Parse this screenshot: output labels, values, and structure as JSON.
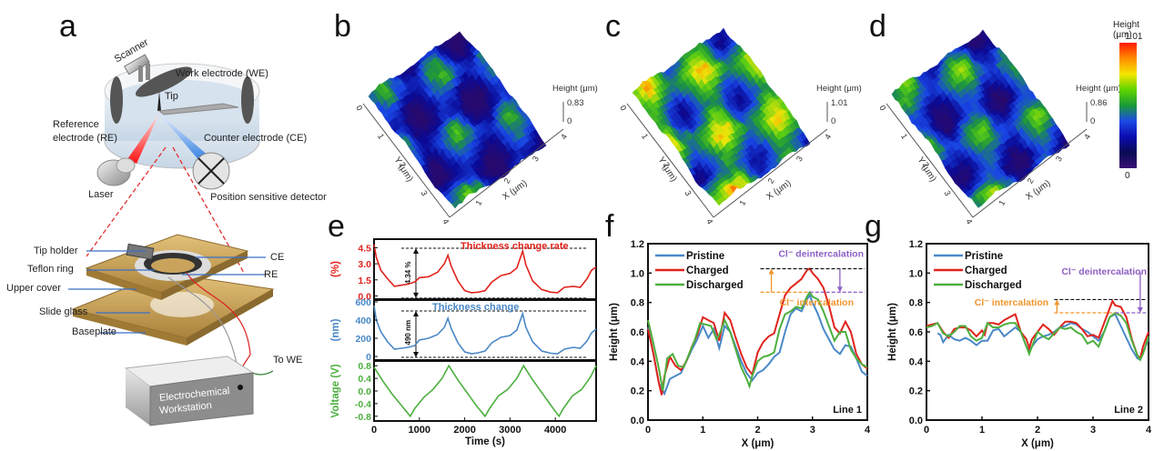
{
  "panels": {
    "a": {
      "label": "a",
      "schematic_top": {
        "scanner": "Scanner",
        "work_electrode": "Work electrode (WE)",
        "tip": "Tip",
        "reference_electrode_line1": "Reference",
        "reference_electrode_line2": "electrode (RE)",
        "counter_electrode": "Counter electrode (CE)",
        "laser": "Laser",
        "detector": "Position sensitive detector"
      },
      "schematic_bottom": {
        "tip_holder": "Tip holder",
        "teflon_ring": "Teflon ring",
        "upper_cover": "Upper cover",
        "slide_glass": "Slide glass",
        "baseplate": "Baseplate",
        "ce": "CE",
        "re": "RE",
        "to_we": "To WE",
        "workstation_line1": "Electrochemical",
        "workstation_line2": "Workstation"
      }
    },
    "b": {
      "label": "b",
      "height_label": "Height (μm)",
      "zmax": "0.83",
      "zmin": "0",
      "x_label": "X (μm)",
      "y_label": "Y (μm)",
      "ticks": [
        "0",
        "1",
        "2",
        "3",
        "4"
      ]
    },
    "c": {
      "label": "c",
      "height_label": "Height (μm)",
      "zmax": "1.01",
      "zmin": "0",
      "x_label": "X (μm)",
      "y_label": "Y (μm)",
      "ticks": [
        "0",
        "1",
        "2",
        "3",
        "4"
      ]
    },
    "d": {
      "label": "d",
      "height_label": "Height (μm)",
      "zmax": "0.86",
      "zmin": "0",
      "x_label": "X (μm)",
      "y_label": "Y (μm)",
      "ticks": [
        "0",
        "1",
        "2",
        "3",
        "4"
      ]
    },
    "colorbar": {
      "title": "Height (μm)",
      "max": "1.01",
      "min": "0",
      "colors": [
        "#ff1a00",
        "#ff8c00",
        "#f5e600",
        "#5fd400",
        "#1a9a3a",
        "#1c49e6",
        "#0b0bb0",
        "#0a0a55",
        "#3a1075"
      ]
    },
    "e": {
      "label": "e"
    },
    "f": {
      "label": "f"
    },
    "g": {
      "label": "g"
    }
  },
  "chart_data": [
    {
      "id": "e",
      "type": "line",
      "xlabel": "Time (s)",
      "xlim": [
        0,
        4900
      ],
      "xticks": [
        "0",
        "1000",
        "2000",
        "3000",
        "4000"
      ],
      "subplots": [
        {
          "name": "Thickness change rate",
          "ylabel": "(%)",
          "color": "#e0231c",
          "ylim": [
            -0.3,
            5.3
          ],
          "yticks": [
            "0.0",
            "1.5",
            "3.0",
            "4.5"
          ],
          "annotation": "4.34 %",
          "ref_lines": [
            4.45,
            -0.2
          ],
          "x": [
            0,
            50,
            150,
            300,
            450,
            600,
            750,
            900,
            1000,
            1200,
            1400,
            1550,
            1630,
            1700,
            1850,
            2000,
            2150,
            2300,
            2450,
            2600,
            2800,
            3000,
            3150,
            3280,
            3350,
            3500,
            3700,
            3900,
            4050,
            4200,
            4400,
            4550,
            4700,
            4800,
            4900
          ],
          "y": [
            4.8,
            3.6,
            2.4,
            1.6,
            0.9,
            1.0,
            1.1,
            1.3,
            1.7,
            1.8,
            2.2,
            3.0,
            3.8,
            2.8,
            1.4,
            0.5,
            0.3,
            0.35,
            0.5,
            1.3,
            1.9,
            2.1,
            2.6,
            4.2,
            2.9,
            1.4,
            0.6,
            0.35,
            0.3,
            0.8,
            0.9,
            0.8,
            1.6,
            2.4,
            2.7
          ]
        },
        {
          "name": "Thickness change",
          "ylabel": "(nm)",
          "color": "#4a88c7",
          "ylim": [
            -40,
            620
          ],
          "yticks": [
            "0",
            "200",
            "400",
            "600"
          ],
          "annotation": "490 nm",
          "ref_lines": [
            500,
            -10
          ],
          "x": [
            0,
            50,
            150,
            300,
            450,
            600,
            750,
            900,
            1000,
            1200,
            1400,
            1550,
            1630,
            1700,
            1850,
            2000,
            2150,
            2300,
            2450,
            2600,
            2800,
            3000,
            3150,
            3280,
            3350,
            3500,
            3700,
            3900,
            4050,
            4200,
            4400,
            4550,
            4700,
            4800,
            4900
          ],
          "y": [
            560,
            400,
            270,
            160,
            80,
            90,
            100,
            120,
            180,
            200,
            240,
            320,
            420,
            310,
            150,
            50,
            30,
            40,
            60,
            150,
            210,
            230,
            290,
            470,
            320,
            160,
            60,
            35,
            30,
            80,
            100,
            90,
            170,
            260,
            300
          ]
        },
        {
          "name": "Voltage",
          "ylabel": "Voltage (V)",
          "color": "#4caf3e",
          "ylim": [
            -0.95,
            0.95
          ],
          "yticks": [
            "-0.8",
            "-0.4",
            "0.0",
            "0.4",
            "0.8"
          ],
          "x": [
            0,
            200,
            400,
            600,
            800,
            900,
            1100,
            1300,
            1500,
            1650,
            1850,
            2050,
            2250,
            2450,
            2550,
            2750,
            2950,
            3150,
            3300,
            3500,
            3700,
            3900,
            4080,
            4180,
            4380,
            4580,
            4780,
            4900
          ],
          "y": [
            0.75,
            0.3,
            -0.1,
            -0.45,
            -0.8,
            -0.55,
            -0.2,
            0.05,
            0.4,
            0.8,
            0.35,
            -0.05,
            -0.45,
            -0.8,
            -0.55,
            -0.15,
            0.05,
            0.4,
            0.8,
            0.35,
            -0.05,
            -0.45,
            -0.8,
            -0.55,
            -0.15,
            0.05,
            0.45,
            0.8
          ]
        }
      ]
    },
    {
      "id": "f",
      "type": "line",
      "xlabel": "X (μm)",
      "ylabel": "Height (μm)",
      "xlim": [
        0,
        4
      ],
      "ylim": [
        0,
        1.2
      ],
      "xticks": [
        "0",
        "1",
        "2",
        "3",
        "4"
      ],
      "yticks": [
        "0.0",
        "0.2",
        "0.4",
        "0.6",
        "0.8",
        "1.0",
        "1.2"
      ],
      "line_tag": "Line 1",
      "annotations": {
        "intercalation": "Cl⁻ intercalation",
        "deintercalation": "Cl⁻ deintercalation",
        "charged_level": 1.03,
        "discharged_level": 0.87,
        "intercalation_color": "#f0962a",
        "deintercalation_color": "#8e5fc4"
      },
      "series": [
        {
          "name": "Pristine",
          "color": "#4a88c7",
          "x": [
            0,
            0.1,
            0.2,
            0.3,
            0.4,
            0.5,
            0.6,
            0.7,
            0.8,
            0.9,
            1.0,
            1.1,
            1.2,
            1.3,
            1.4,
            1.5,
            1.6,
            1.7,
            1.8,
            1.9,
            2.0,
            2.1,
            2.2,
            2.3,
            2.4,
            2.5,
            2.6,
            2.7,
            2.8,
            2.9,
            2.95,
            3.0,
            3.1,
            3.2,
            3.3,
            3.4,
            3.5,
            3.6,
            3.7,
            3.8,
            3.9,
            4.0
          ],
          "y": [
            0.63,
            0.45,
            0.25,
            0.18,
            0.28,
            0.3,
            0.32,
            0.4,
            0.48,
            0.55,
            0.64,
            0.56,
            0.62,
            0.49,
            0.64,
            0.6,
            0.5,
            0.4,
            0.32,
            0.27,
            0.32,
            0.34,
            0.38,
            0.43,
            0.46,
            0.6,
            0.72,
            0.76,
            0.74,
            0.82,
            0.85,
            0.8,
            0.72,
            0.62,
            0.55,
            0.48,
            0.45,
            0.51,
            0.5,
            0.42,
            0.33,
            0.3
          ]
        },
        {
          "name": "Charged",
          "color": "#e0231c",
          "x": [
            0,
            0.1,
            0.2,
            0.25,
            0.3,
            0.4,
            0.5,
            0.6,
            0.7,
            0.8,
            0.9,
            1.0,
            1.1,
            1.2,
            1.3,
            1.4,
            1.5,
            1.6,
            1.7,
            1.8,
            1.9,
            2.0,
            2.1,
            2.2,
            2.3,
            2.4,
            2.5,
            2.6,
            2.7,
            2.8,
            2.9,
            2.95,
            3.0,
            3.1,
            3.2,
            3.3,
            3.4,
            3.5,
            3.6,
            3.7,
            3.8,
            3.9,
            4.0
          ],
          "y": [
            0.62,
            0.45,
            0.25,
            0.17,
            0.3,
            0.43,
            0.37,
            0.34,
            0.4,
            0.5,
            0.58,
            0.7,
            0.68,
            0.66,
            0.54,
            0.73,
            0.68,
            0.56,
            0.45,
            0.36,
            0.31,
            0.46,
            0.53,
            0.57,
            0.59,
            0.72,
            0.85,
            0.9,
            0.93,
            0.96,
            1.02,
            1.03,
            1.0,
            0.96,
            0.9,
            0.78,
            0.63,
            0.59,
            0.67,
            0.6,
            0.45,
            0.38,
            0.35
          ]
        },
        {
          "name": "Discharged",
          "color": "#4caf3e",
          "x": [
            0,
            0.1,
            0.2,
            0.27,
            0.35,
            0.45,
            0.55,
            0.65,
            0.75,
            0.85,
            0.95,
            1.05,
            1.15,
            1.25,
            1.3,
            1.4,
            1.5,
            1.6,
            1.7,
            1.8,
            1.85,
            1.9,
            2.0,
            2.1,
            2.2,
            2.3,
            2.4,
            2.5,
            2.6,
            2.7,
            2.8,
            2.9,
            2.95,
            3.0,
            3.1,
            3.2,
            3.3,
            3.4,
            3.5,
            3.6,
            3.7,
            3.8,
            3.9,
            4.0
          ],
          "y": [
            0.68,
            0.52,
            0.35,
            0.2,
            0.42,
            0.45,
            0.37,
            0.36,
            0.45,
            0.54,
            0.66,
            0.65,
            0.64,
            0.55,
            0.58,
            0.68,
            0.6,
            0.48,
            0.36,
            0.28,
            0.23,
            0.3,
            0.4,
            0.43,
            0.44,
            0.46,
            0.62,
            0.72,
            0.74,
            0.77,
            0.76,
            0.84,
            0.87,
            0.84,
            0.82,
            0.74,
            0.64,
            0.54,
            0.6,
            0.6,
            0.48,
            0.42,
            0.38,
            0.36
          ]
        }
      ]
    },
    {
      "id": "g",
      "type": "line",
      "xlabel": "X (μm)",
      "ylabel": "Height (μm)",
      "xlim": [
        0,
        4
      ],
      "ylim": [
        0,
        1.2
      ],
      "xticks": [
        "0",
        "1",
        "2",
        "3",
        "4"
      ],
      "yticks": [
        "0.0",
        "0.2",
        "0.4",
        "0.6",
        "0.8",
        "1.0",
        "1.2"
      ],
      "line_tag": "Line 2",
      "annotations": {
        "intercalation": "Cl⁻ intercalation",
        "deintercalation": "Cl⁻ deintercalation",
        "charged_level": 0.82,
        "discharged_level": 0.73,
        "intercalation_color": "#f0962a",
        "deintercalation_color": "#8e5fc4"
      },
      "series": [
        {
          "name": "Pristine",
          "color": "#4a88c7",
          "x": [
            0.2,
            0.25,
            0.3,
            0.4,
            0.5,
            0.6,
            0.7,
            0.8,
            0.9,
            1.0,
            1.1,
            1.2,
            1.3,
            1.4,
            1.5,
            1.6,
            1.7,
            1.8,
            1.85,
            1.9,
            2.0,
            2.1,
            2.2,
            2.3,
            2.4,
            2.5,
            2.6,
            2.7,
            2.8,
            2.9,
            3.0,
            3.1,
            3.2,
            3.3,
            3.4,
            3.5,
            3.6,
            3.7,
            3.8,
            3.85,
            3.9,
            4.0
          ],
          "y": [
            0.59,
            0.58,
            0.53,
            0.58,
            0.55,
            0.54,
            0.56,
            0.54,
            0.51,
            0.54,
            0.54,
            0.61,
            0.62,
            0.57,
            0.6,
            0.63,
            0.6,
            0.5,
            0.47,
            0.5,
            0.55,
            0.57,
            0.58,
            0.6,
            0.63,
            0.64,
            0.66,
            0.65,
            0.62,
            0.6,
            0.57,
            0.54,
            0.6,
            0.7,
            0.72,
            0.64,
            0.56,
            0.48,
            0.42,
            0.41,
            0.46,
            0.55
          ]
        },
        {
          "name": "Charged",
          "color": "#e0231c",
          "x": [
            0,
            0.1,
            0.2,
            0.3,
            0.4,
            0.5,
            0.6,
            0.7,
            0.8,
            0.9,
            1.0,
            1.05,
            1.1,
            1.2,
            1.3,
            1.4,
            1.5,
            1.6,
            1.7,
            1.8,
            1.85,
            1.9,
            2.0,
            2.1,
            2.2,
            2.3,
            2.4,
            2.5,
            2.6,
            2.7,
            2.8,
            2.9,
            3.0,
            3.1,
            3.2,
            3.3,
            3.35,
            3.4,
            3.5,
            3.6,
            3.7,
            3.8,
            3.85,
            3.9,
            4.0
          ],
          "y": [
            0.64,
            0.65,
            0.66,
            0.6,
            0.56,
            0.62,
            0.63,
            0.63,
            0.61,
            0.57,
            0.61,
            0.58,
            0.66,
            0.66,
            0.65,
            0.68,
            0.7,
            0.72,
            0.6,
            0.55,
            0.49,
            0.55,
            0.6,
            0.65,
            0.62,
            0.58,
            0.63,
            0.67,
            0.67,
            0.66,
            0.62,
            0.57,
            0.58,
            0.56,
            0.66,
            0.76,
            0.81,
            0.78,
            0.77,
            0.7,
            0.55,
            0.44,
            0.42,
            0.5,
            0.6
          ]
        },
        {
          "name": "Discharged",
          "color": "#4caf3e",
          "x": [
            0,
            0.1,
            0.2,
            0.3,
            0.4,
            0.5,
            0.6,
            0.7,
            0.8,
            0.9,
            1.0,
            1.1,
            1.2,
            1.3,
            1.4,
            1.5,
            1.6,
            1.7,
            1.8,
            1.85,
            1.9,
            2.0,
            2.1,
            2.2,
            2.3,
            2.4,
            2.5,
            2.6,
            2.7,
            2.8,
            2.9,
            3.0,
            3.1,
            3.2,
            3.3,
            3.4,
            3.5,
            3.6,
            3.7,
            3.8,
            3.85,
            3.9,
            4.0
          ],
          "y": [
            0.63,
            0.64,
            0.66,
            0.59,
            0.57,
            0.6,
            0.64,
            0.64,
            0.57,
            0.54,
            0.56,
            0.66,
            0.63,
            0.63,
            0.65,
            0.66,
            0.66,
            0.6,
            0.5,
            0.45,
            0.5,
            0.6,
            0.57,
            0.55,
            0.59,
            0.63,
            0.62,
            0.63,
            0.6,
            0.58,
            0.52,
            0.54,
            0.5,
            0.6,
            0.7,
            0.73,
            0.71,
            0.66,
            0.54,
            0.44,
            0.41,
            0.45,
            0.57
          ]
        }
      ]
    }
  ]
}
